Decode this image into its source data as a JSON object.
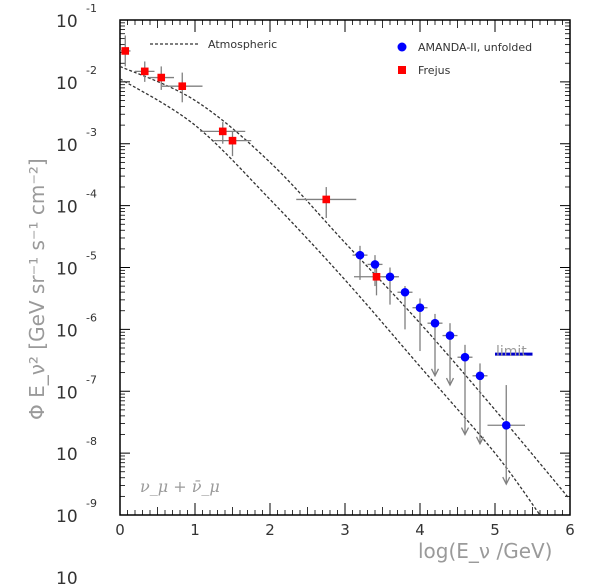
{
  "chart_data": {
    "type": "scatter",
    "title": "",
    "xlabel": "log(E_ν /GeV)",
    "ylabel": "Φ E_ν² [GeV sr⁻¹ s⁻¹ cm⁻²]",
    "xlim": [
      0,
      6
    ],
    "ylim_log10": [
      -9,
      -1
    ],
    "y_scale": "log",
    "grid": false,
    "legend": "top-right",
    "x_ticks": [
      "0",
      "1",
      "2",
      "3",
      "4",
      "5",
      "6"
    ],
    "y_ticks": [
      {
        "base": "10",
        "exp": "-1"
      },
      {
        "base": "10",
        "exp": "-2"
      },
      {
        "base": "10",
        "exp": "-3"
      },
      {
        "base": "10",
        "exp": "-4"
      },
      {
        "base": "10",
        "exp": "-5"
      },
      {
        "base": "10",
        "exp": "-6"
      },
      {
        "base": "10",
        "exp": "-7"
      },
      {
        "base": "10",
        "exp": "-8"
      },
      {
        "base": "10",
        "exp": "-9"
      },
      {
        "base": "10",
        "exp": ""
      }
    ],
    "series": [
      {
        "name": "Atmospheric",
        "kind": "band",
        "upper": [
          [
            0,
            -1.75
          ],
          [
            1,
            -2.3
          ],
          [
            2,
            -3.3
          ],
          [
            3,
            -4.6
          ],
          [
            4,
            -5.9
          ],
          [
            5,
            -7.3
          ],
          [
            6,
            -8.75
          ]
        ],
        "lower": [
          [
            0,
            -1.95
          ],
          [
            1,
            -2.7
          ],
          [
            2,
            -3.9
          ],
          [
            3,
            -5.2
          ],
          [
            4,
            -6.6
          ],
          [
            5,
            -8.0
          ],
          [
            5.6,
            -9.0
          ]
        ]
      },
      {
        "name": "AMANDA-II, unfolded",
        "kind": "points",
        "color": "#0000ff",
        "points": [
          {
            "x": 3.2,
            "y": -4.8,
            "xerr": 0.1,
            "ylo": -5.2,
            "yhi": -4.65,
            "arrow": false
          },
          {
            "x": 3.4,
            "y": -4.95,
            "xerr": 0.1,
            "ylo": -5.3,
            "yhi": -4.8,
            "arrow": false
          },
          {
            "x": 3.6,
            "y": -5.15,
            "xerr": 0.1,
            "ylo": -5.6,
            "yhi": -5.0,
            "arrow": false
          },
          {
            "x": 3.8,
            "y": -5.4,
            "xerr": 0.1,
            "ylo": -6.0,
            "yhi": -5.3,
            "arrow": false
          },
          {
            "x": 4.0,
            "y": -5.65,
            "xerr": 0.1,
            "ylo": -6.35,
            "yhi": -5.5,
            "arrow": false
          },
          {
            "x": 4.2,
            "y": -5.9,
            "xerr": 0.1,
            "ylo": -6.75,
            "yhi": -5.75,
            "arrow": true
          },
          {
            "x": 4.4,
            "y": -6.1,
            "xerr": 0.1,
            "ylo": -6.9,
            "yhi": -5.9,
            "arrow": true
          },
          {
            "x": 4.6,
            "y": -6.45,
            "xerr": 0.1,
            "ylo": -7.7,
            "yhi": -6.25,
            "arrow": true
          },
          {
            "x": 4.8,
            "y": -6.75,
            "xerr": 0.1,
            "ylo": -7.85,
            "yhi": -6.55,
            "arrow": true
          },
          {
            "x": 5.15,
            "y": -7.55,
            "xerr": 0.25,
            "ylo": -8.5,
            "yhi": -6.9,
            "arrow": true
          }
        ]
      },
      {
        "name": "Frejus",
        "kind": "points",
        "color": "#ff0000",
        "points": [
          {
            "x": 0.07,
            "y": -1.5,
            "xerr": 0.07,
            "ylo": -1.75,
            "yhi": -1.25
          },
          {
            "x": 0.33,
            "y": -1.83,
            "xerr": 0.13,
            "ylo": -2.0,
            "yhi": -1.67
          },
          {
            "x": 0.55,
            "y": -1.93,
            "xerr": 0.17,
            "ylo": -2.13,
            "yhi": -1.75
          },
          {
            "x": 0.83,
            "y": -2.07,
            "xerr": 0.27,
            "ylo": -2.33,
            "yhi": -1.85
          },
          {
            "x": 1.37,
            "y": -2.8,
            "xerr": 0.3,
            "ylo": -3.0,
            "yhi": -2.65
          },
          {
            "x": 1.5,
            "y": -2.95,
            "xerr": 0.25,
            "ylo": -3.2,
            "yhi": -2.8
          },
          {
            "x": 2.75,
            "y": -3.9,
            "xerr": 0.4,
            "ylo": -4.2,
            "yhi": -3.7
          },
          {
            "x": 3.42,
            "y": -5.15,
            "xerr": 0.3,
            "ylo": -5.45,
            "yhi": -4.95
          }
        ]
      },
      {
        "name": "limit",
        "kind": "limit",
        "color": "#0000cc",
        "x": [
          5.0,
          5.5
        ],
        "y": -6.4
      }
    ],
    "annotations": {
      "limit_label": "limit",
      "flux_label": "ν_μ + ν̄_μ"
    }
  }
}
